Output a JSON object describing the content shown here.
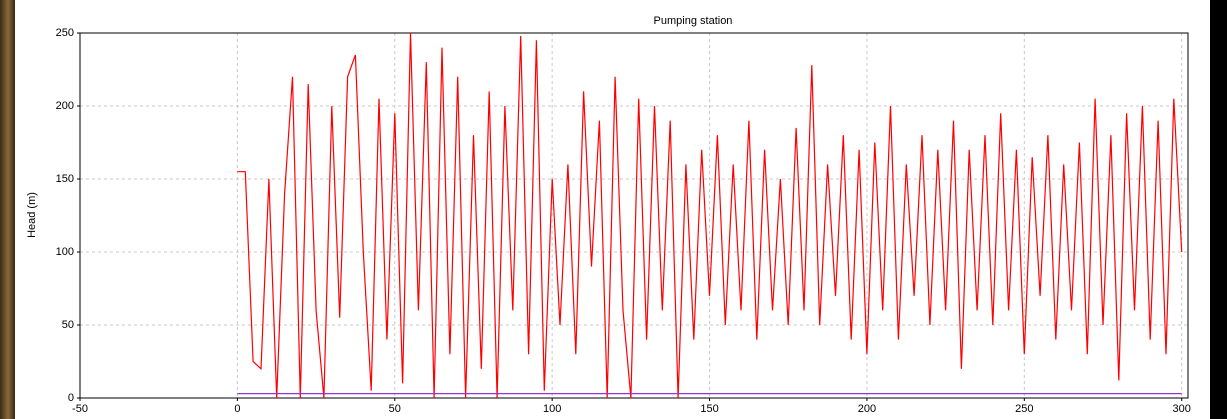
{
  "chart_data": {
    "type": "line",
    "title": "Pumping station",
    "y_label": "Head (m)",
    "xlim": [
      -50,
      302
    ],
    "ylim": [
      0,
      250
    ],
    "xticks": [
      -50,
      0,
      50,
      100,
      150,
      200,
      250,
      300
    ],
    "yticks": [
      0,
      50,
      100,
      150,
      200,
      250
    ],
    "grid": true,
    "series": [
      {
        "color": "#ff0000",
        "x": [
          0,
          2.5,
          5,
          7.5,
          10,
          12.5,
          15,
          17.5,
          20,
          22.5,
          25,
          27.5,
          30,
          32.5,
          35,
          37.5,
          40,
          42.5,
          45,
          47.5,
          50,
          52.5,
          55,
          57.5,
          60,
          62.5,
          65,
          67.5,
          70,
          72.5,
          75,
          77.5,
          80,
          82.5,
          85,
          87.5,
          90,
          92.5,
          95,
          97.5,
          100,
          102.5,
          105,
          107.5,
          110,
          112.5,
          115,
          117.5,
          120,
          122.5,
          125,
          127.5,
          130,
          132.5,
          135,
          137.5,
          140,
          142.5,
          145,
          147.5,
          150,
          152.5,
          155,
          157.5,
          160,
          162.5,
          165,
          167.5,
          170,
          172.5,
          175,
          177.5,
          180,
          182.5,
          185,
          187.5,
          190,
          192.5,
          195,
          197.5,
          200,
          202.5,
          205,
          207.5,
          210,
          212.5,
          215,
          217.5,
          220,
          222.5,
          225,
          227.5,
          230,
          232.5,
          235,
          237.5,
          240,
          242.5,
          245,
          247.5,
          250,
          252.5,
          255,
          257.5,
          260,
          262.5,
          265,
          267.5,
          270,
          272.5,
          275,
          277.5,
          280,
          282.5,
          285,
          287.5,
          290,
          292.5,
          295,
          297.5,
          300
        ],
        "values": [
          155,
          155,
          25,
          20,
          150,
          0,
          140,
          220,
          0,
          215,
          60,
          0,
          200,
          55,
          220,
          235,
          100,
          5,
          205,
          40,
          195,
          10,
          250,
          60,
          230,
          0,
          240,
          30,
          220,
          0,
          180,
          20,
          210,
          0,
          200,
          60,
          248,
          30,
          245,
          5,
          150,
          50,
          160,
          30,
          210,
          90,
          190,
          0,
          220,
          60,
          0,
          205,
          40,
          200,
          60,
          190,
          0,
          160,
          40,
          170,
          70,
          180,
          50,
          160,
          60,
          190,
          40,
          170,
          60,
          150,
          50,
          185,
          60,
          228,
          50,
          160,
          70,
          180,
          40,
          170,
          30,
          175,
          60,
          200,
          40,
          160,
          70,
          180,
          50,
          170,
          60,
          190,
          20,
          170,
          60,
          180,
          50,
          195,
          60,
          170,
          30,
          165,
          70,
          180,
          40,
          160,
          60,
          175,
          30,
          205,
          50,
          180,
          12,
          195,
          60,
          200,
          40,
          190,
          30,
          205,
          100
        ]
      },
      {
        "color": "#9933cc",
        "x": [
          0,
          300
        ],
        "values": [
          3,
          3
        ]
      }
    ]
  }
}
